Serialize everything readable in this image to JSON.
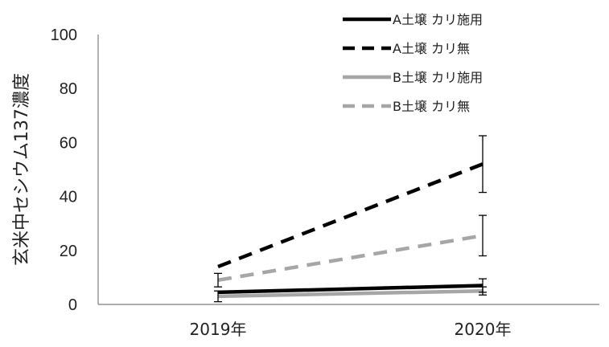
{
  "chart_data": {
    "type": "line",
    "categories": [
      "2019年",
      "2020年"
    ],
    "ylabel": "玄米中セシウム137濃度",
    "xlabel": "",
    "ylim": [
      0,
      100
    ],
    "yticks": [
      0,
      20,
      40,
      60,
      80,
      100
    ],
    "series": [
      {
        "name": "A土壌 カリ施用",
        "values": [
          4.5,
          7
        ],
        "error": [
          null,
          2.5
        ],
        "color": "#000000",
        "dash": false
      },
      {
        "name": "A土壌 カリ無",
        "values": [
          14,
          52
        ],
        "error": [
          null,
          10.5
        ],
        "color": "#000000",
        "dash": true
      },
      {
        "name": "B土壌 カリ施用",
        "values": [
          3,
          5
        ],
        "error": [
          2,
          1.5
        ],
        "color": "#a6a6a6",
        "dash": false
      },
      {
        "name": "B土壌 カリ無",
        "values": [
          9,
          25.5
        ],
        "error": [
          2.5,
          7.5
        ],
        "color": "#a6a6a6",
        "dash": true
      }
    ],
    "grid": false,
    "legend": "top-right"
  }
}
